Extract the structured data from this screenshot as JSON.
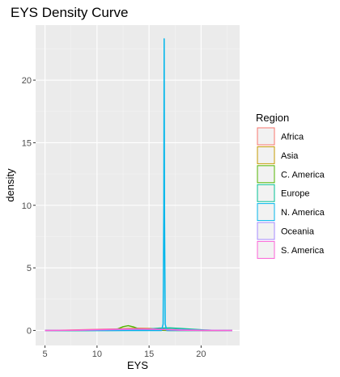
{
  "chart_data": {
    "type": "line",
    "title": "EYS Density Curve",
    "xlabel": "EYS",
    "ylabel": "density",
    "xlim": [
      4.1,
      23.7
    ],
    "ylim": [
      -1.2,
      24.4
    ],
    "x_ticks": [
      5,
      10,
      15,
      20
    ],
    "y_ticks": [
      0,
      5,
      10,
      15,
      20
    ],
    "grid": true,
    "legend": {
      "title": "Region",
      "position": "right"
    },
    "series": [
      {
        "name": "Africa",
        "color": "#F8766D",
        "x": [
          5,
          7,
          9,
          11,
          13,
          15,
          17,
          19,
          21,
          23
        ],
        "y": [
          0.0,
          0.02,
          0.06,
          0.1,
          0.08,
          0.05,
          0.02,
          0.01,
          0.0,
          0.0
        ]
      },
      {
        "name": "Asia",
        "color": "#C49A00",
        "x": [
          5,
          7,
          9,
          11,
          12,
          13,
          14,
          15,
          16,
          17,
          19,
          21,
          23
        ],
        "y": [
          0.0,
          0.0,
          0.02,
          0.08,
          0.12,
          0.15,
          0.17,
          0.16,
          0.12,
          0.08,
          0.02,
          0.0,
          0.0
        ]
      },
      {
        "name": "C. America",
        "color": "#53B400",
        "x": [
          5,
          9,
          11,
          12,
          12.5,
          13,
          13.5,
          14,
          15,
          16,
          17,
          19,
          23
        ],
        "y": [
          0.0,
          0.0,
          0.02,
          0.12,
          0.3,
          0.38,
          0.28,
          0.12,
          0.05,
          0.02,
          0.0,
          0.0,
          0.0
        ]
      },
      {
        "name": "Europe",
        "color": "#00C094",
        "x": [
          5,
          11,
          13,
          14,
          15,
          16,
          17,
          18,
          19,
          20,
          21,
          23
        ],
        "y": [
          0.0,
          0.0,
          0.01,
          0.05,
          0.12,
          0.18,
          0.2,
          0.16,
          0.1,
          0.05,
          0.01,
          0.0
        ]
      },
      {
        "name": "N. America",
        "color": "#00B6EB",
        "x": [
          5,
          16.2,
          16.35,
          16.42,
          16.45,
          16.48,
          16.55,
          16.7,
          23
        ],
        "y": [
          0.0,
          0.0,
          0.5,
          10.0,
          23.3,
          10.0,
          0.5,
          0.0,
          0.0
        ]
      },
      {
        "name": "Oceania",
        "color": "#A58AFF",
        "x": [
          5,
          8,
          10,
          12,
          14,
          16,
          18,
          20,
          23
        ],
        "y": [
          0.0,
          0.01,
          0.04,
          0.07,
          0.09,
          0.08,
          0.06,
          0.02,
          0.0
        ]
      },
      {
        "name": "S. America",
        "color": "#FB61D7",
        "x": [
          5,
          8,
          10,
          12,
          13,
          14,
          15,
          16,
          17,
          18,
          20,
          23
        ],
        "y": [
          0.0,
          0.02,
          0.06,
          0.1,
          0.12,
          0.13,
          0.12,
          0.09,
          0.05,
          0.02,
          0.0,
          0.0
        ]
      }
    ]
  }
}
